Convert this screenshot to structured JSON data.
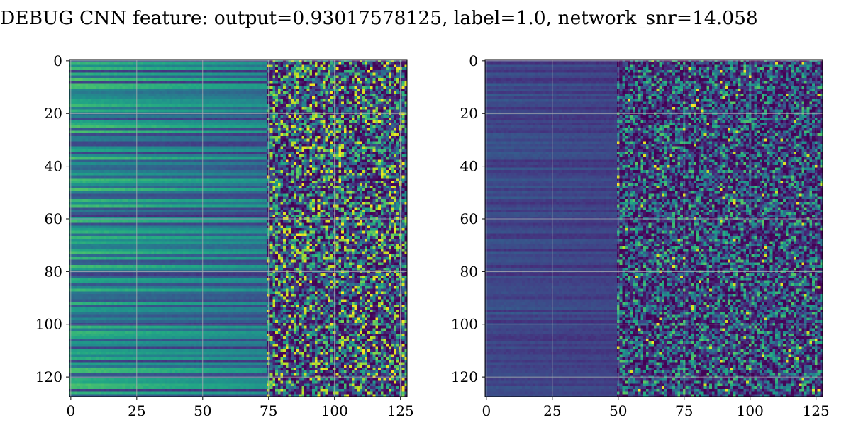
{
  "figure": {
    "title": "DEBUG CNN feature: output=0.93017578125, label=1.0, network_snr=14.058"
  },
  "chart_data": [
    {
      "type": "heatmap",
      "title": "",
      "xlabel": "",
      "ylabel": "",
      "shape": [
        128,
        128
      ],
      "xlim": [
        -0.5,
        127.5
      ],
      "ylim": [
        127.5,
        -0.5
      ],
      "xticks": [
        0,
        25,
        50,
        75,
        100,
        125
      ],
      "yticks": [
        0,
        20,
        40,
        60,
        80,
        100,
        120
      ],
      "grid": true,
      "colormap": "viridis",
      "seed": 7,
      "description_of_values": "horizontal bands of nearly constant value for x<~75, noisy speckle with bright yellow spots for x>~75",
      "band_strength": 1.0,
      "noise_onset_x": 75,
      "bright_rows": [
        7,
        17,
        25,
        37,
        45,
        55,
        61,
        67,
        87,
        101,
        103,
        118
      ]
    },
    {
      "type": "heatmap",
      "title": "",
      "xlabel": "",
      "ylabel": "",
      "shape": [
        128,
        128
      ],
      "xlim": [
        -0.5,
        127.5
      ],
      "ylim": [
        127.5,
        -0.5
      ],
      "xticks": [
        0,
        25,
        50,
        75,
        100,
        125
      ],
      "yticks": [
        0,
        20,
        40,
        60,
        80,
        100,
        120
      ],
      "grid": true,
      "colormap": "viridis",
      "seed": 19,
      "description_of_values": "mostly dark purple with faint horizontal banding for x<~50, sparse green/yellow speckle for x>~50",
      "band_strength": 0.25,
      "noise_onset_x": 50,
      "bright_rows": [
        9,
        15,
        35,
        45,
        52,
        94
      ]
    }
  ]
}
